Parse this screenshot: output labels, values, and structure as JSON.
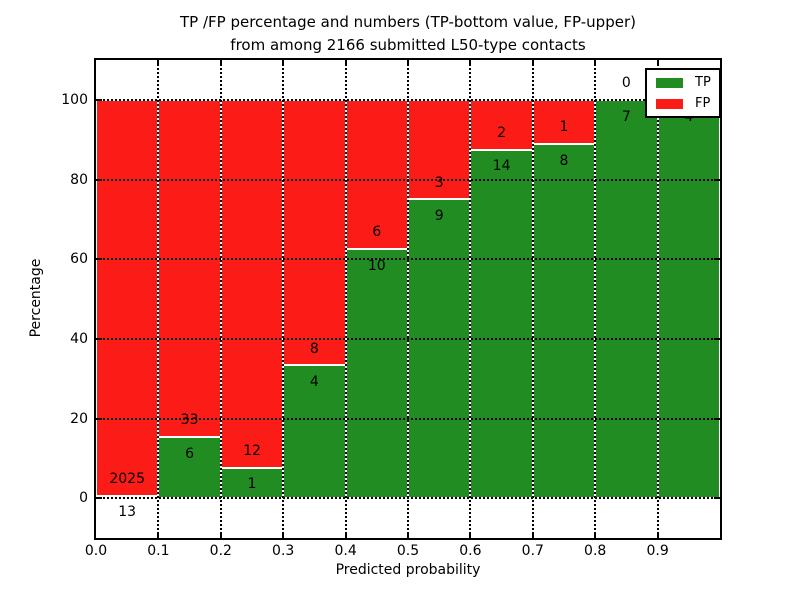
{
  "figure": {
    "title_line1": "TP /FP percentage and numbers (TP-bottom value, FP-upper)",
    "title_line2": "from among 2166 submitted L50-type contacts"
  },
  "chart_data": {
    "type": "bar",
    "stacked": true,
    "title": "TP /FP percentage and numbers (TP-bottom value, FP-upper) from among 2166 submitted L50-type contacts",
    "xlabel": "Predicted probability",
    "ylabel": "Percentage",
    "xlim": [
      0.0,
      1.0
    ],
    "ylim": [
      -10,
      110
    ],
    "grid": true,
    "bar_width": 0.1,
    "categories": [
      "0.0-0.1",
      "0.1-0.2",
      "0.2-0.3",
      "0.3-0.4",
      "0.4-0.5",
      "0.5-0.6",
      "0.6-0.7",
      "0.7-0.8",
      "0.8-0.9",
      "0.9-1.0"
    ],
    "x_tick_labels": [
      "0.0",
      "0.1",
      "0.2",
      "0.3",
      "0.4",
      "0.5",
      "0.6",
      "0.7",
      "0.8",
      "0.9"
    ],
    "y_ticks": [
      0,
      20,
      40,
      60,
      80,
      100
    ],
    "series": [
      {
        "name": "TP",
        "color": "#208c21",
        "values": [
          13,
          6,
          1,
          4,
          10,
          9,
          14,
          8,
          7,
          4
        ]
      },
      {
        "name": "FP",
        "color": "#fb1c17",
        "values": [
          2025,
          33,
          12,
          8,
          6,
          3,
          2,
          1,
          0,
          0
        ]
      }
    ],
    "tp_percent": [
      0.64,
      15.38,
      7.69,
      33.33,
      62.5,
      75.0,
      87.5,
      88.89,
      100.0,
      100.0
    ],
    "legend": {
      "position": "upper right",
      "entries": [
        {
          "label": "TP",
          "color": "#208c21"
        },
        {
          "label": "FP",
          "color": "#fb1c17"
        }
      ]
    }
  }
}
